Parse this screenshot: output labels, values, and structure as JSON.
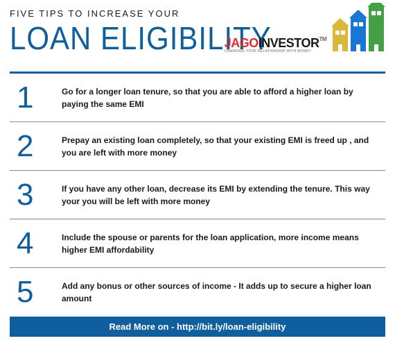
{
  "header": {
    "subtitle": "FIVE TIPS TO INCREASE YOUR",
    "title": "LOAN ELIGIBILITY"
  },
  "logo": {
    "part1": "JAGO",
    "part2": "INVESTOR",
    "tm": "TM",
    "tagline": "CHANGING YOUR RELATIONSHIP WITH MONEY",
    "colors": {
      "part1": "#d32f2f",
      "part2": "#1a1a1a"
    }
  },
  "buildings": [
    {
      "color": "#d9b93a",
      "width": 22,
      "height": 36,
      "roof_peak": 12
    },
    {
      "color": "#1976d2",
      "width": 22,
      "height": 48,
      "roof_peak": 12
    },
    {
      "color": "#43a047",
      "width": 22,
      "height": 64,
      "roof_peak": 12
    }
  ],
  "accent_color": "#0f5f9e",
  "tips": [
    {
      "n": "1",
      "text": "Go for a longer loan tenure, so that you are able to afford a higher loan by paying the same EMI"
    },
    {
      "n": "2",
      "text": "Prepay an existing loan completely, so that your existing EMI is freed up , and you are left with more money"
    },
    {
      "n": "3",
      "text": "If you have any other loan, decrease its EMI by extending the tenure. This way your you will be left with more money"
    },
    {
      "n": "4",
      "text": "Include the spouse or parents for the loan application, more income means higher EMI affordability"
    },
    {
      "n": "5",
      "text": "Add any bonus or other sources of income - It adds up to secure a higher loan amount"
    }
  ],
  "footer": {
    "text": "Read More on - http://bit.ly/loan-eligibility"
  }
}
